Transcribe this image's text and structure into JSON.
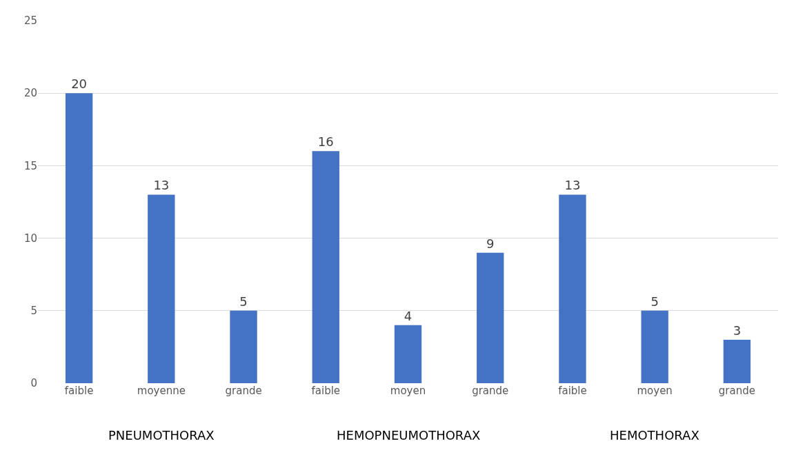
{
  "chart_data": {
    "type": "bar",
    "categories": [
      "faible",
      "moyenne",
      "grande",
      "faible",
      "moyen",
      "grande",
      "faible",
      "moyen",
      "grande"
    ],
    "values": [
      20,
      13,
      5,
      16,
      4,
      9,
      13,
      5,
      3
    ],
    "color": "#4472c4",
    "ylim": [
      0,
      25
    ],
    "yticks": [
      0,
      5,
      10,
      15,
      20,
      25
    ],
    "grid": "y",
    "data_labels": true,
    "annotations": [
      "PNEUMOTHORAX",
      "HEMOPNEUMOTHORAX",
      "HEMOTHORAX"
    ]
  }
}
